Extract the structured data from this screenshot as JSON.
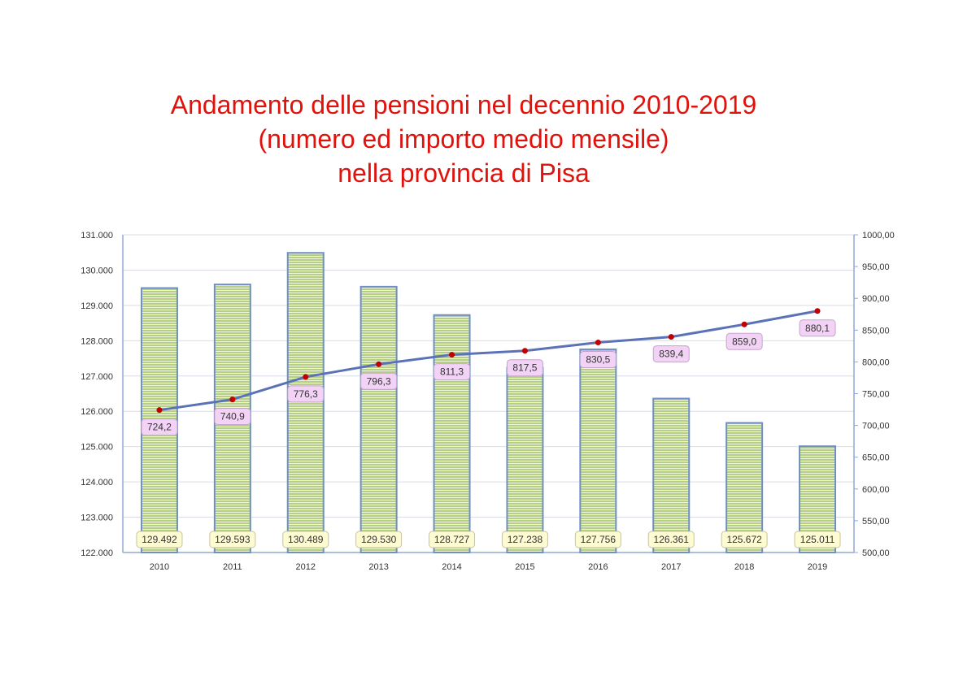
{
  "title_lines": [
    "Andamento delle pensioni nel decennio 2010-2019",
    "(numero ed importo medio mensile)",
    "nella provincia di Pisa"
  ],
  "chart_data": {
    "type": "bar",
    "categories": [
      "2010",
      "2011",
      "2012",
      "2013",
      "2014",
      "2015",
      "2016",
      "2017",
      "2018",
      "2019"
    ],
    "series": [
      {
        "type": "bar",
        "axis": "left",
        "values": [
          129492,
          129593,
          130489,
          129530,
          128727,
          127238,
          127756,
          126361,
          125672,
          125011
        ],
        "labels": [
          "129.492",
          "129.593",
          "130.489",
          "129.530",
          "128.727",
          "127.238",
          "127.756",
          "126.361",
          "125.672",
          "125.011"
        ]
      },
      {
        "type": "line",
        "axis": "right",
        "values": [
          724.2,
          740.9,
          776.3,
          796.3,
          811.3,
          817.5,
          830.5,
          839.4,
          859.0,
          880.1
        ],
        "labels": [
          "724,2",
          "740,9",
          "776,3",
          "796,3",
          "811,3",
          "817,5",
          "830,5",
          "839,4",
          "859,0",
          "880,1"
        ]
      }
    ],
    "y_left": {
      "min": 122000,
      "max": 131000,
      "ticks": [
        122000,
        123000,
        124000,
        125000,
        126000,
        127000,
        128000,
        129000,
        130000,
        131000
      ],
      "tick_labels": [
        "122.000",
        "123.000",
        "124.000",
        "125.000",
        "126.000",
        "127.000",
        "128.000",
        "129.000",
        "130.000",
        "131.000"
      ]
    },
    "y_right": {
      "min": 500,
      "max": 1000,
      "ticks": [
        500,
        550,
        600,
        650,
        700,
        750,
        800,
        850,
        900,
        950,
        1000
      ],
      "tick_labels": [
        "500,00",
        "550,00",
        "600,00",
        "650,00",
        "700,00",
        "750,00",
        "800,00",
        "850,00",
        "900,00",
        "950,00",
        "1000,00"
      ]
    },
    "grid": true,
    "legend": "none",
    "colors": {
      "bar_fill": "#b6cf85",
      "bar_stripe": "#eef5dc",
      "bar_border": "#6f8fc6",
      "line": "#5b72b8",
      "marker": "#c00000",
      "line_label_bg": "#f2d2f5",
      "line_label_border": "#c6a3cc",
      "bar_label_bg": "#fdfbd2",
      "bar_label_border": "#c9c39a",
      "grid": "#d9dde6",
      "axis": "#8fa9d6"
    }
  }
}
